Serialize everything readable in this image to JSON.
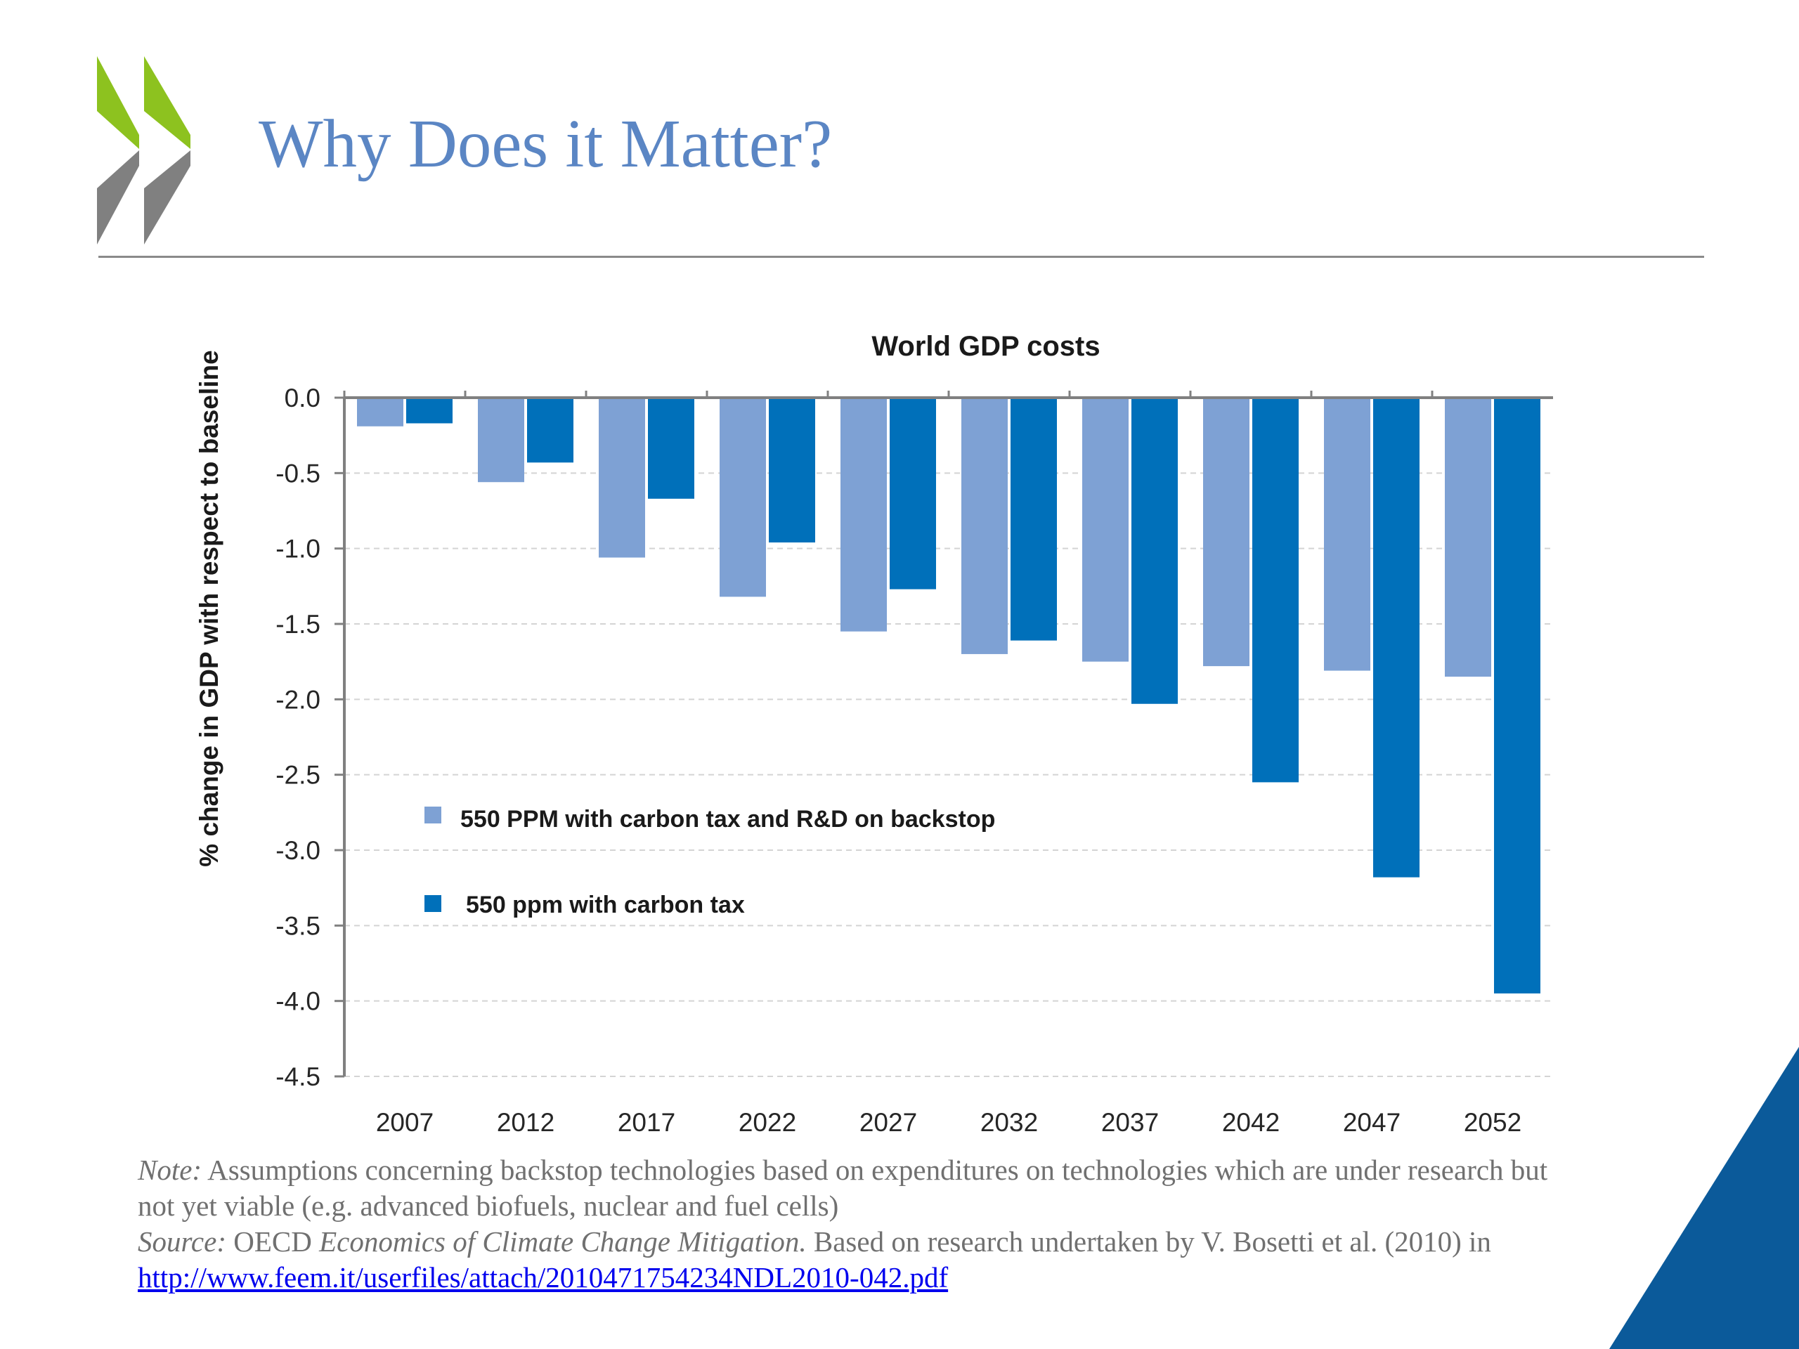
{
  "slide": {
    "title": "Why Does it Matter?"
  },
  "colors": {
    "title": "#5b86c4",
    "series_light": "#7ea1d4",
    "series_dark": "#0070ba",
    "logo_green": "#8dc21f",
    "logo_grey": "#808080",
    "corner_triangle": "#0b5a9a"
  },
  "chart_data": {
    "type": "bar",
    "title": "World GDP costs",
    "ylabel": "% change in GDP with respect to baseline",
    "xlabel": "",
    "ylim": [
      -4.5,
      0.0
    ],
    "yticks": [
      "0.0",
      "-0.5",
      "-1.0",
      "-1.5",
      "-2.0",
      "-2.5",
      "-3.0",
      "-3.5",
      "-4.0",
      "-4.5"
    ],
    "grid": true,
    "legend_position": "inside-left",
    "categories": [
      "2007",
      "2012",
      "2017",
      "2022",
      "2027",
      "2032",
      "2037",
      "2042",
      "2047",
      "2052"
    ],
    "series": [
      {
        "name": "550 PPM with carbon tax and R&D on backstop",
        "color": "#7ea1d4",
        "values": [
          -0.19,
          -0.56,
          -1.06,
          -1.32,
          -1.55,
          -1.7,
          -1.75,
          -1.78,
          -1.81,
          -1.85
        ]
      },
      {
        "name": "550 ppm with carbon tax",
        "color": "#0070ba",
        "values": [
          -0.17,
          -0.43,
          -0.67,
          -0.96,
          -1.27,
          -1.61,
          -2.03,
          -2.55,
          -3.18,
          -3.95
        ]
      }
    ]
  },
  "notes": {
    "note_label": "Note:",
    "note_text": " Assumptions concerning backstop technologies based on expenditures on technologies which are under research but not yet viable (e.g. advanced biofuels, nuclear and fuel cells)",
    "source_label": "Source:",
    "source_org": " OECD ",
    "source_title": "Economics of Climate Change Mitigation.",
    "source_text": " Based on research undertaken by V. Bosetti et al. (2010) in",
    "source_link": "http://www.feem.it/userfiles/attach/2010471754234NDL2010-042.pdf"
  }
}
